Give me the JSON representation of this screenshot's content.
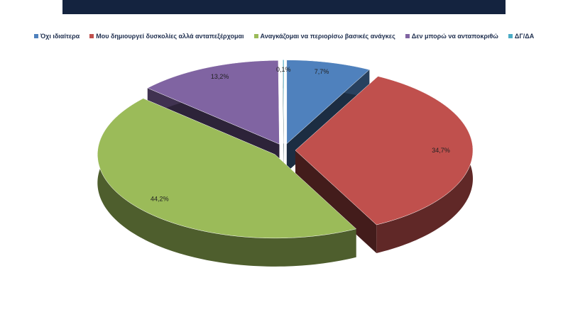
{
  "chart_data": {
    "type": "pie",
    "categories": [
      "Όχι ιδιαίτερα",
      "Μου δημιουργεί δυσκολίες αλλά ανταπεξέρχομαι",
      "Αναγκάζομαι να περιορίσω βασικές ανάγκες",
      "Δεν μπορώ να ανταποκριθώ",
      "ΔΓ/ΔΑ"
    ],
    "values": [
      7.7,
      34.7,
      44.2,
      13.2,
      0.1
    ],
    "value_labels": [
      "7,7%",
      "34,7%",
      "44,2%",
      "13,2%",
      "0,1%"
    ],
    "colors": [
      "#4f81bd",
      "#c0504d",
      "#9bbb59",
      "#8064a2",
      "#4bacc6"
    ],
    "legend": "top"
  }
}
